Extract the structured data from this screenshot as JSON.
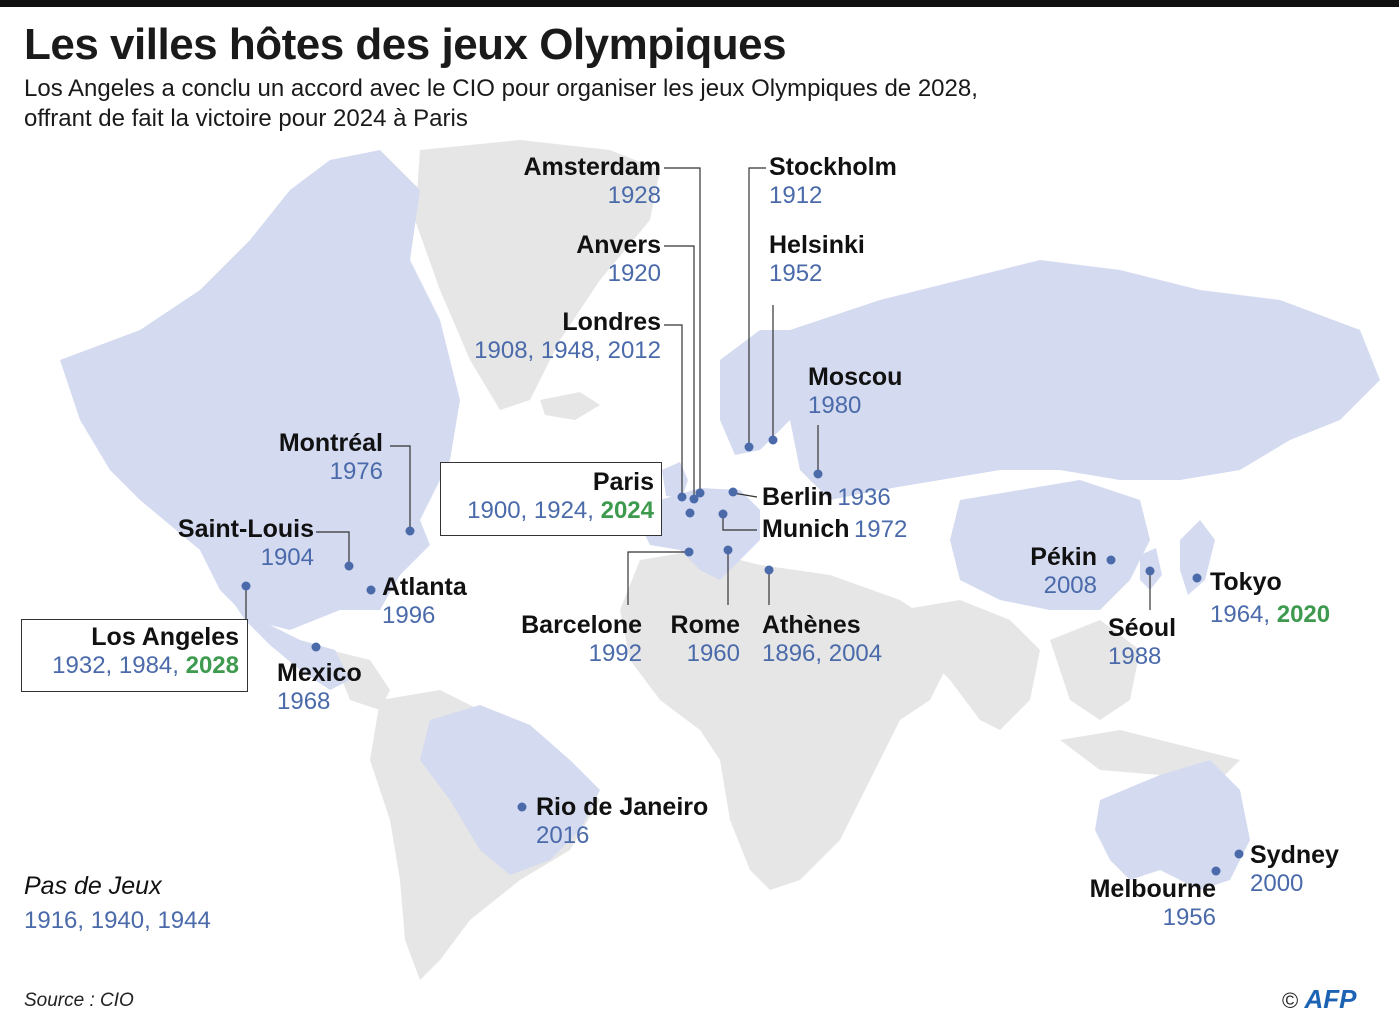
{
  "title": "Les villes hôtes des jeux Olympiques",
  "subtitle_line1": "Los Angeles a conclu un accord avec le CIO pour organiser les jeux Olympiques de 2028,",
  "subtitle_line2": "offrant de fait la victoire pour 2024 à Paris",
  "colors": {
    "land_base": "#e6e6e6",
    "land_host": "#d4daf0",
    "dot": "#4a6aaa",
    "years": "#4a6aaa",
    "future_year": "#3e9a4e"
  },
  "cities": {
    "amsterdam": {
      "name": "Amsterdam",
      "years": "1928"
    },
    "stockholm": {
      "name": "Stockholm",
      "years": "1912"
    },
    "anvers": {
      "name": "Anvers",
      "years": "1920"
    },
    "helsinki": {
      "name": "Helsinki",
      "years": "1952"
    },
    "londres": {
      "name": "Londres",
      "years": "1908, 1948, 2012"
    },
    "moscou": {
      "name": "Moscou",
      "years": "1980"
    },
    "montreal": {
      "name": "Montréal",
      "years": "1976"
    },
    "paris": {
      "name": "Paris",
      "years": "1900, 1924, ",
      "future": "2024"
    },
    "berlin": {
      "name": "Berlin",
      "years": "1936"
    },
    "munich": {
      "name": "Munich",
      "years": "1972"
    },
    "saint_louis": {
      "name": "Saint-Louis",
      "years": "1904"
    },
    "atlanta": {
      "name": "Atlanta",
      "years": "1996"
    },
    "pekin": {
      "name": "Pékin",
      "years": "2008"
    },
    "tokyo": {
      "name": "Tokyo",
      "years": "1964, ",
      "future": "2020"
    },
    "los_angeles": {
      "name": "Los Angeles",
      "years": "1932, 1984, ",
      "future": "2028"
    },
    "mexico": {
      "name": "Mexico",
      "years": "1968"
    },
    "barcelone": {
      "name": "Barcelone",
      "years": "1992"
    },
    "rome": {
      "name": "Rome",
      "years": "1960"
    },
    "athenes": {
      "name": "Athènes",
      "years": "1896, 2004"
    },
    "seoul": {
      "name": "Séoul",
      "years": "1988"
    },
    "rio": {
      "name": "Rio de Janeiro",
      "years": "2016"
    },
    "sydney": {
      "name": "Sydney",
      "years": "2000"
    },
    "melbourne": {
      "name": "Melbourne",
      "years": "1956"
    }
  },
  "no_games": {
    "label": "Pas de Jeux",
    "years": "1916, 1940, 1944"
  },
  "source": "Source : CIO",
  "credit": {
    "copyright": "©",
    "agency": "AFP"
  }
}
